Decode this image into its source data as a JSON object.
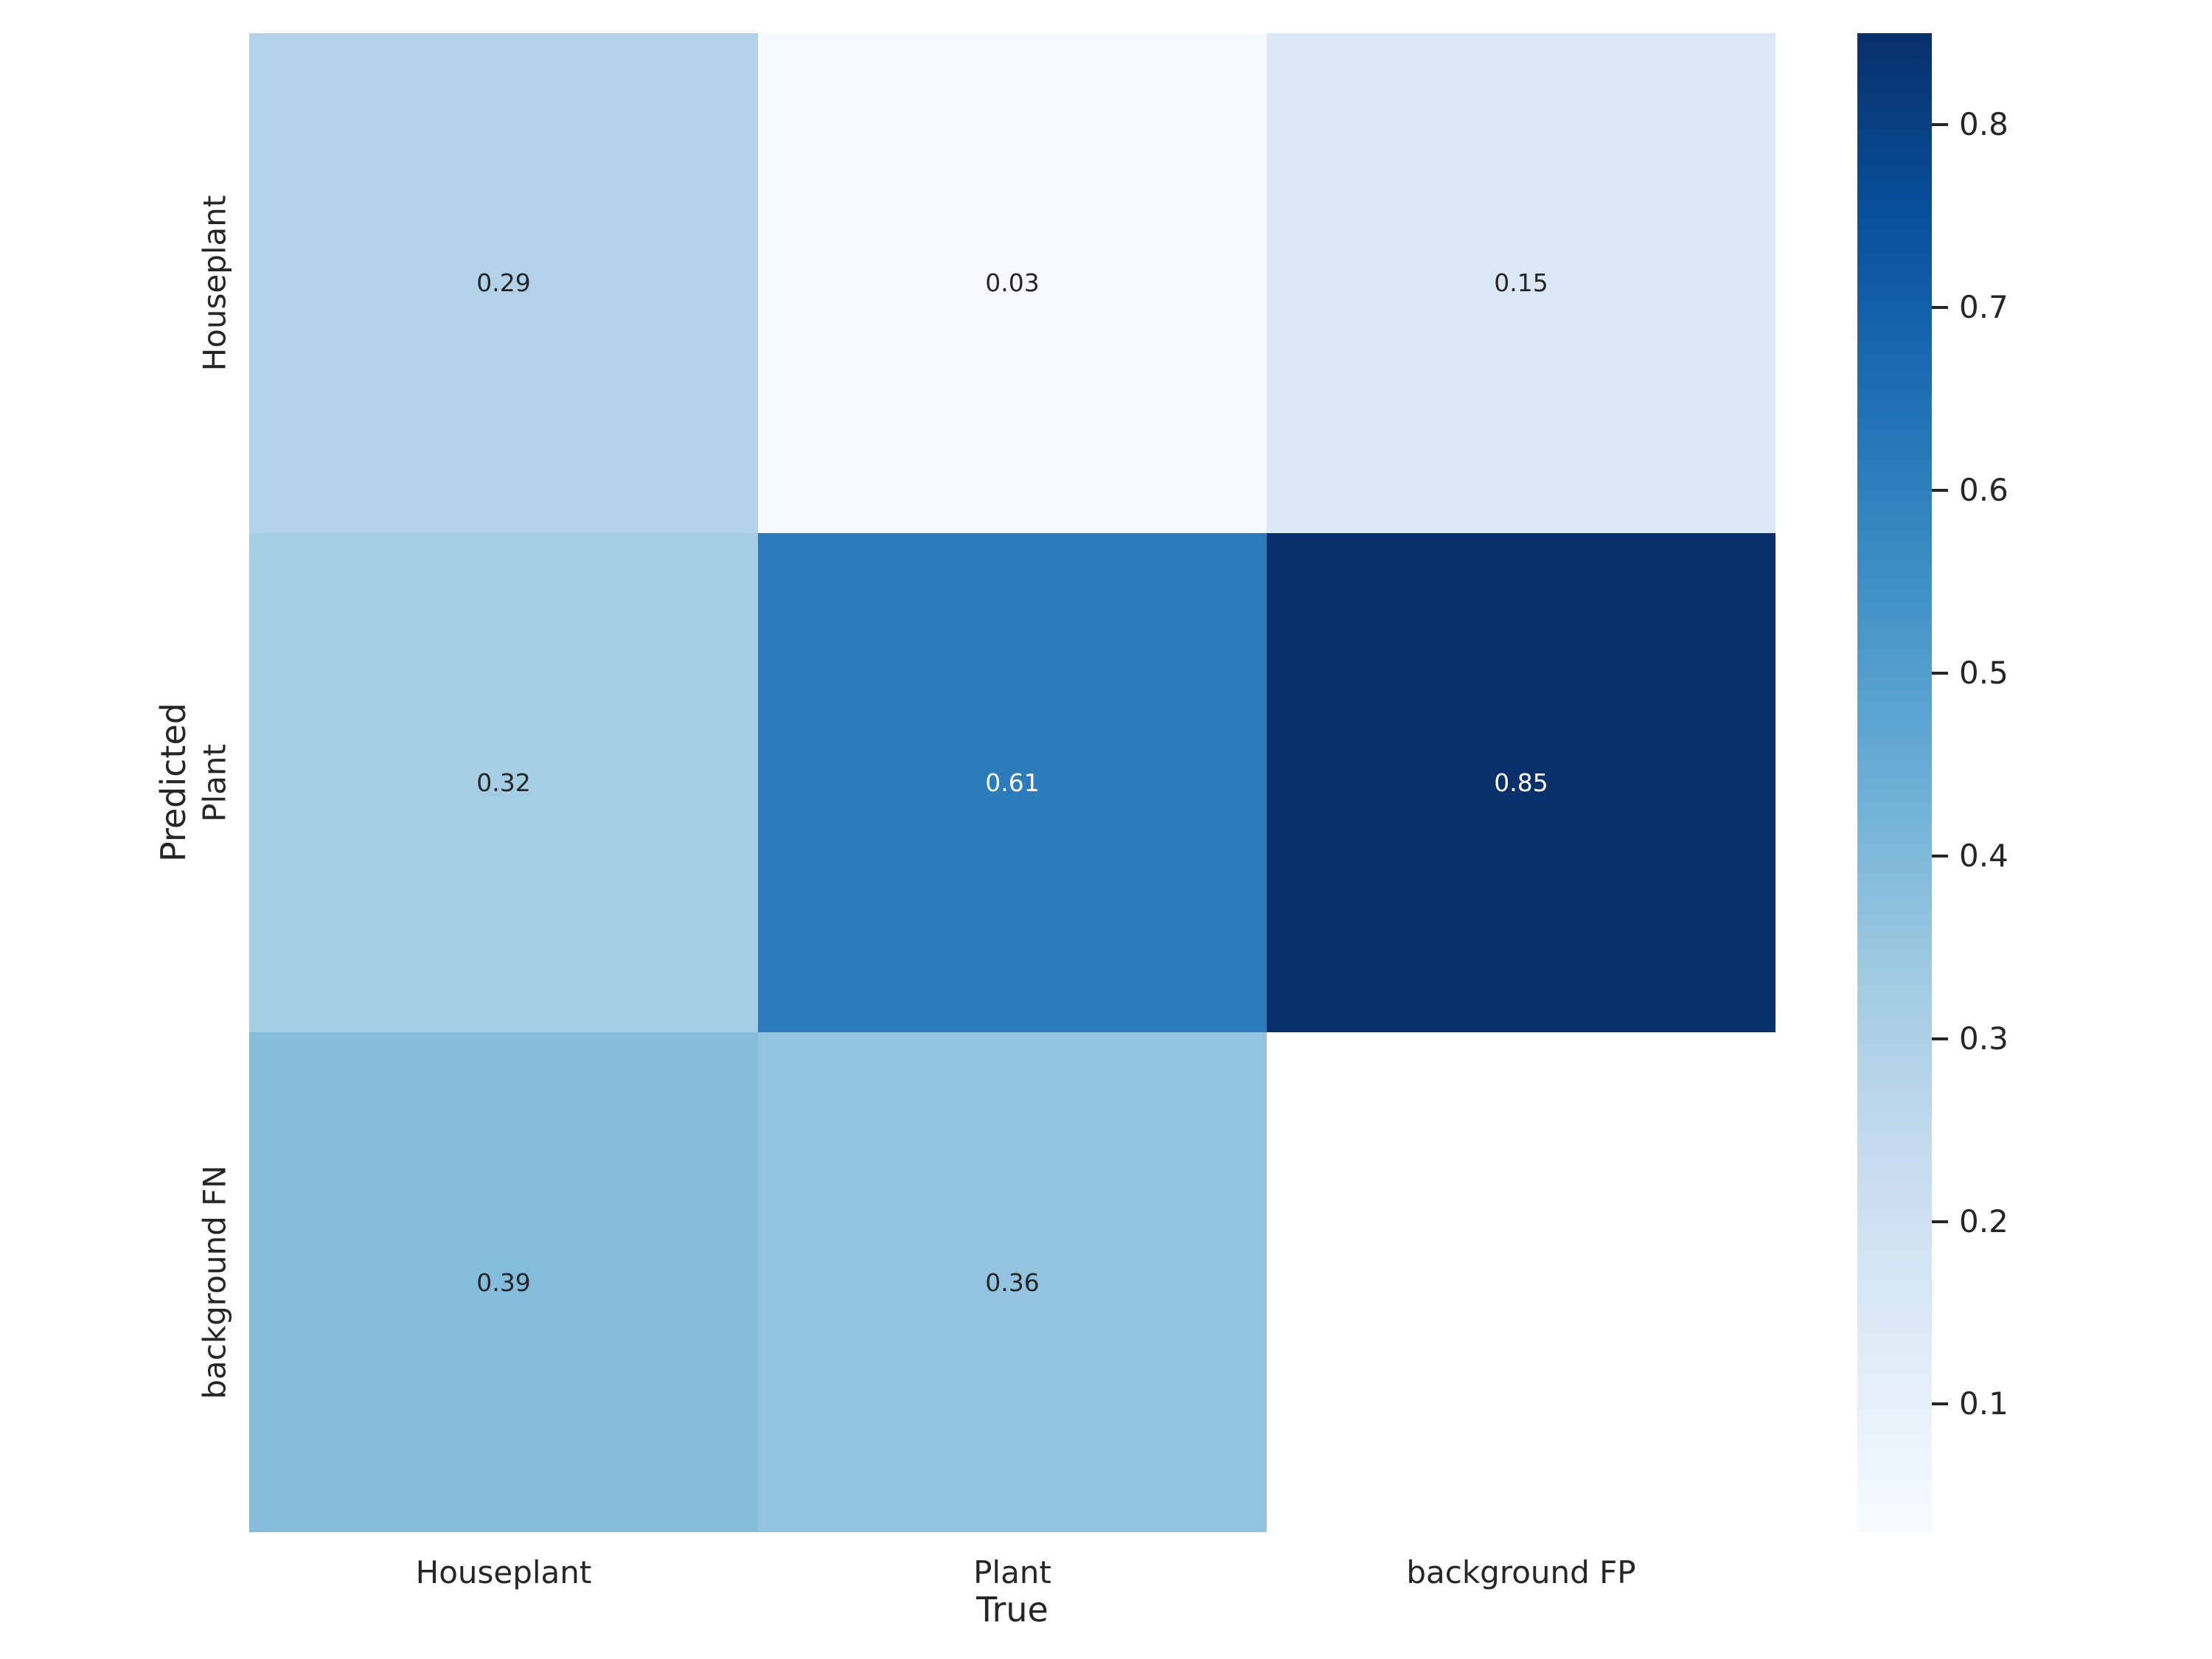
{
  "chart_data": {
    "type": "heatmap",
    "xlabel": "True",
    "ylabel": "Predicted",
    "x_categories": [
      "Houseplant",
      "Plant",
      "background FP"
    ],
    "y_categories": [
      "Houseplant",
      "Plant",
      "background FN"
    ],
    "values": [
      [
        0.29,
        0.03,
        0.15
      ],
      [
        0.32,
        0.61,
        0.85
      ],
      [
        0.39,
        0.36,
        null
      ]
    ],
    "cell_labels": [
      [
        "0.29",
        "0.03",
        "0.15"
      ],
      [
        "0.32",
        "0.61",
        "0.85"
      ],
      [
        "0.39",
        "0.36",
        ""
      ]
    ],
    "cell_colors": [
      [
        "#b1d2e8",
        "#f7fbff",
        "#dae8f6"
      ],
      [
        "#a5cde3",
        "#2c7cbb",
        "#08306b"
      ],
      [
        "#84bcdb",
        "#93c4df",
        "#ffffff"
      ]
    ],
    "cell_text_colors": [
      [
        "#262626",
        "#262626",
        "#262626"
      ],
      [
        "#262626",
        "#ffffff",
        "#ffffff"
      ],
      [
        "#262626",
        "#262626",
        "#262626"
      ]
    ],
    "colormap": "Blues",
    "vmin": 0.03,
    "vmax": 0.85,
    "colorbar": {
      "tick_values": [
        0.8,
        0.7,
        0.6,
        0.5,
        0.4,
        0.3,
        0.2,
        0.1
      ],
      "tick_labels": [
        "0.8",
        "0.7",
        "0.6",
        "0.5",
        "0.4",
        "0.3",
        "0.2",
        "0.1"
      ],
      "gradient_stops": [
        "#f7fbff 0%",
        "#deebf7 12.5%",
        "#c6dbef 25%",
        "#9ecae1 37.5%",
        "#6baed6 50%",
        "#4292c6 62.5%",
        "#2171b5 75%",
        "#08519c 87.5%",
        "#08306b 100%"
      ]
    },
    "grid": false,
    "legend_position": "right-colorbar",
    "background_color": "#ffffff",
    "masked_cells": [
      [
        2,
        2
      ]
    ]
  }
}
